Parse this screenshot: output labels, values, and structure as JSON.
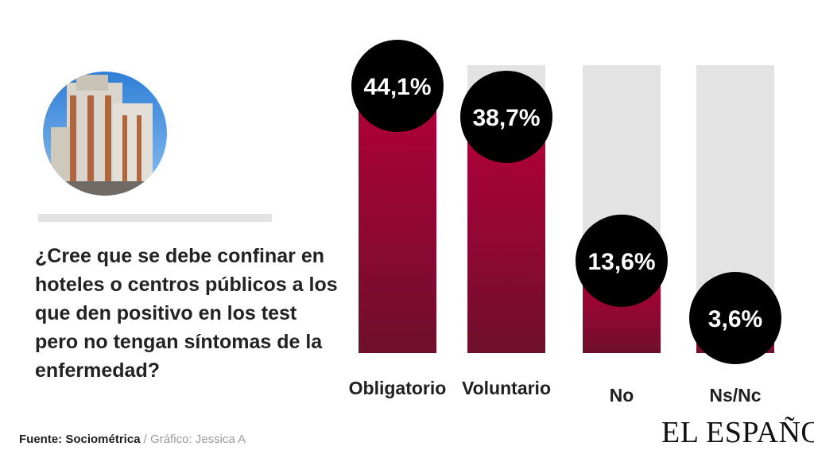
{
  "question": "¿Cree que se debe confinar en hoteles o centros públicos a los que den positivo en los test pero no tengan síntomas de la enfermedad?",
  "source": {
    "label": "Fuente: Sociométrica",
    "separator": " / ",
    "credit": "Gráfico: Jessica A"
  },
  "logo": "EL ESPAÑOL",
  "colors": {
    "bar_top": "#b0003a",
    "bar_bottom": "#6e0f2c",
    "track": "#e3e3e3",
    "bubble": "#000000"
  },
  "chart_data": {
    "type": "bar",
    "categories": [
      "Obligatorio",
      "Voluntario",
      "No",
      "Ns/Nc"
    ],
    "values": [
      44.1,
      38.7,
      13.6,
      3.6
    ],
    "value_labels": [
      "44,1%",
      "38,7%",
      "13,6%",
      "3,6%"
    ],
    "title": "",
    "xlabel": "",
    "ylabel": "",
    "ylim": [
      0,
      50
    ],
    "grid": false,
    "legend": "none"
  }
}
